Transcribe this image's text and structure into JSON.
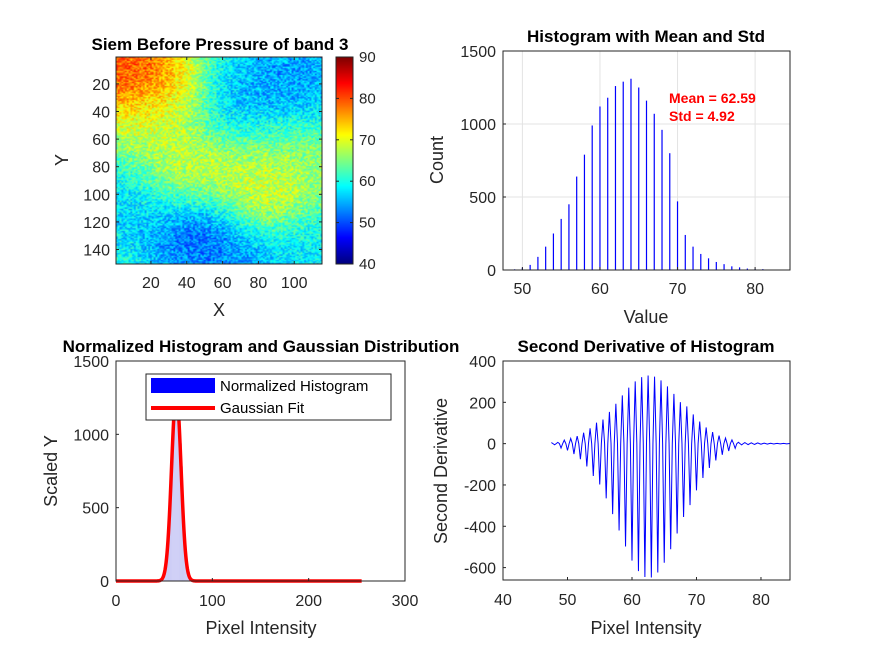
{
  "chart_data": [
    {
      "type": "heatmap",
      "title": "Siem Before Pressure of band 3",
      "xlabel": "X",
      "ylabel": "Y",
      "xlim": [
        0.5,
        115.5
      ],
      "ylim": [
        0.5,
        150.5
      ],
      "xticks": [
        "20",
        "40",
        "60",
        "80",
        "100"
      ],
      "yticks": [
        "20",
        "40",
        "60",
        "80",
        "100",
        "120",
        "140"
      ],
      "colorbar": {
        "colormap": "jet",
        "range": [
          40,
          90
        ],
        "ticks": [
          "40",
          "50",
          "60",
          "70",
          "80",
          "90"
        ]
      },
      "grid_size": [
        115,
        150
      ],
      "blobs": [
        {
          "x": 8,
          "y": 14,
          "v": 86
        },
        {
          "x": 22,
          "y": 40,
          "v": 70
        },
        {
          "x": 38,
          "y": 85,
          "v": 71
        },
        {
          "x": 80,
          "y": 103,
          "v": 72
        },
        {
          "x": 88,
          "y": 68,
          "v": 68
        },
        {
          "x": 100,
          "y": 12,
          "v": 52
        },
        {
          "x": 80,
          "y": 38,
          "v": 53
        },
        {
          "x": 48,
          "y": 128,
          "v": 48
        },
        {
          "x": 12,
          "y": 108,
          "v": 55
        },
        {
          "x": 63,
          "y": 150,
          "v": 52
        },
        {
          "x": 108,
          "y": 140,
          "v": 57
        }
      ],
      "base_value": 62
    },
    {
      "type": "bar",
      "title": "Histogram with Mean and Std",
      "xlabel": "Value",
      "ylabel": "Count",
      "xlim": [
        47.5,
        84.5
      ],
      "ylim": [
        0,
        1500
      ],
      "grid": true,
      "xticks": [
        "50",
        "60",
        "70",
        "80"
      ],
      "yticks": [
        "0",
        "500",
        "1000",
        "1500"
      ],
      "x": [
        48,
        49,
        50,
        51,
        52,
        53,
        54,
        55,
        56,
        57,
        58,
        59,
        60,
        61,
        62,
        63,
        64,
        65,
        66,
        67,
        68,
        69,
        70,
        71,
        72,
        73,
        74,
        75,
        76,
        77,
        78,
        79,
        80,
        81,
        82,
        83,
        84
      ],
      "values": [
        2,
        5,
        15,
        35,
        90,
        160,
        250,
        350,
        450,
        640,
        790,
        990,
        1120,
        1180,
        1260,
        1290,
        1310,
        1250,
        1160,
        1070,
        960,
        800,
        470,
        240,
        160,
        110,
        80,
        55,
        40,
        25,
        18,
        10,
        8,
        6,
        3,
        2,
        1
      ],
      "annotations": [
        "Mean = 62.59",
        "Std = 4.92"
      ],
      "color": "#0000ff"
    },
    {
      "type": "bar",
      "title": "Normalized Histogram and Gaussian Distribution",
      "xlabel": "Pixel Intensity",
      "ylabel": "Scaled Y",
      "xlim": [
        0,
        300
      ],
      "ylim": [
        0,
        1500
      ],
      "xticks": [
        "0",
        "100",
        "200",
        "300"
      ],
      "yticks": [
        "0",
        "500",
        "1000",
        "1500"
      ],
      "series": [
        {
          "name": "Normalized Histogram",
          "type": "bar",
          "color": "#0000ff"
        },
        {
          "name": "Gaussian Fit",
          "type": "line",
          "color": "#ff0000",
          "mean": 62.59,
          "std": 4.92,
          "peak": 1280,
          "x_range": [
            0,
            255
          ]
        }
      ],
      "legend": "top-right"
    },
    {
      "type": "line",
      "title": "Second Derivative of Histogram",
      "xlabel": "Pixel Intensity",
      "ylabel": "Second Derivative",
      "xlim": [
        40,
        84.5
      ],
      "ylim": [
        -660,
        400
      ],
      "xticks": [
        "40",
        "50",
        "60",
        "70",
        "80"
      ],
      "yticks": [
        "400",
        "200",
        "0",
        "-200",
        "-400",
        "-600"
      ],
      "x_start": 47.5,
      "x_end": 84.5,
      "step": 0.25,
      "color": "#0000ff"
    }
  ]
}
